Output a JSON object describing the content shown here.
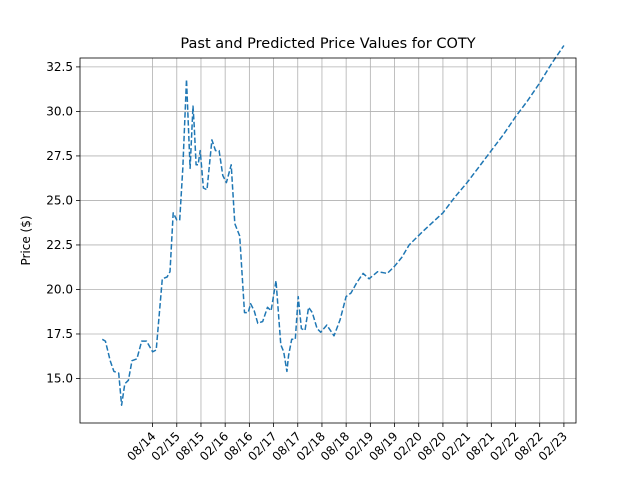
{
  "chart_data": {
    "type": "line",
    "title": "Past and Predicted Price Values for COTY",
    "xlabel": "",
    "ylabel": "Price ($)",
    "grid": true,
    "xlim": [
      0,
      20.5
    ],
    "ylim": [
      12.5,
      33.0
    ],
    "x_ticks": [
      {
        "pos": 3,
        "label": "08/14"
      },
      {
        "pos": 4,
        "label": "02/15"
      },
      {
        "pos": 5,
        "label": "08/15"
      },
      {
        "pos": 6,
        "label": "02/16"
      },
      {
        "pos": 7,
        "label": "08/16"
      },
      {
        "pos": 8,
        "label": "02/17"
      },
      {
        "pos": 9,
        "label": "08/17"
      },
      {
        "pos": 10,
        "label": "02/18"
      },
      {
        "pos": 11,
        "label": "08/18"
      },
      {
        "pos": 12,
        "label": "02/19"
      },
      {
        "pos": 13,
        "label": "08/19"
      },
      {
        "pos": 14,
        "label": "02/20"
      },
      {
        "pos": 15,
        "label": "08/20"
      },
      {
        "pos": 16,
        "label": "02/21"
      },
      {
        "pos": 17,
        "label": "08/21"
      },
      {
        "pos": 18,
        "label": "02/22"
      },
      {
        "pos": 19,
        "label": "08/22"
      },
      {
        "pos": 20,
        "label": "02/23"
      }
    ],
    "y_ticks": [
      {
        "value": 15.0,
        "label": "15.0"
      },
      {
        "value": 17.5,
        "label": "17.5"
      },
      {
        "value": 20.0,
        "label": "20.0"
      },
      {
        "value": 22.5,
        "label": "22.5"
      },
      {
        "value": 25.0,
        "label": "25.0"
      },
      {
        "value": 27.5,
        "label": "27.5"
      },
      {
        "value": 30.0,
        "label": "30.0"
      },
      {
        "value": 32.5,
        "label": "32.5"
      }
    ],
    "series": [
      {
        "color": "#1f77b4",
        "style": "dashed",
        "x": [
          0.92,
          1.05,
          1.25,
          1.4,
          1.6,
          1.72,
          1.85,
          2.0,
          2.15,
          2.35,
          2.55,
          2.75,
          3.0,
          3.15,
          3.4,
          3.6,
          3.72,
          3.85,
          4.0,
          4.12,
          4.25,
          4.4,
          4.55,
          4.67,
          4.72,
          4.8,
          4.88,
          4.97,
          5.1,
          5.25,
          5.45,
          5.6,
          5.75,
          5.9,
          6.05,
          6.25,
          6.4,
          6.6,
          6.8,
          6.95,
          7.05,
          7.2,
          7.35,
          7.55,
          7.75,
          7.9,
          8.1,
          8.3,
          8.42,
          8.55,
          8.62,
          8.75,
          8.9,
          9.02,
          9.15,
          9.3,
          9.45,
          9.6,
          9.8,
          9.95,
          10.2,
          10.5,
          10.75,
          11.0,
          11.2,
          11.45,
          11.7,
          11.95,
          12.3,
          12.7,
          13.0,
          13.3,
          13.6,
          13.9,
          14.2,
          14.6,
          15.0,
          15.5,
          16.0,
          16.5,
          17.0,
          17.5,
          18.0,
          18.5,
          19.0,
          19.5,
          20.0
        ],
        "y": [
          17.2,
          17.1,
          16.0,
          15.4,
          15.3,
          13.5,
          14.7,
          14.9,
          16.0,
          16.1,
          17.1,
          17.1,
          16.5,
          16.6,
          20.6,
          20.7,
          21.0,
          24.3,
          23.9,
          23.9,
          26.8,
          31.8,
          26.8,
          30.3,
          29.2,
          27.0,
          27.0,
          27.8,
          25.7,
          25.6,
          28.4,
          27.8,
          27.8,
          26.4,
          26.0,
          27.0,
          23.7,
          23.0,
          18.7,
          18.7,
          19.2,
          18.8,
          18.1,
          18.2,
          19.0,
          18.8,
          20.5,
          16.9,
          16.5,
          15.4,
          16.3,
          17.2,
          17.2,
          19.6,
          17.8,
          17.7,
          19.0,
          18.7,
          17.8,
          17.6,
          18.0,
          17.4,
          18.3,
          19.6,
          19.8,
          20.4,
          20.9,
          20.6,
          21.0,
          20.9,
          21.3,
          21.8,
          22.5,
          22.9,
          23.3,
          23.8,
          24.3,
          25.2,
          26.0,
          26.9,
          27.8,
          28.7,
          29.7,
          30.6,
          31.6,
          32.7,
          33.7
        ]
      }
    ]
  }
}
